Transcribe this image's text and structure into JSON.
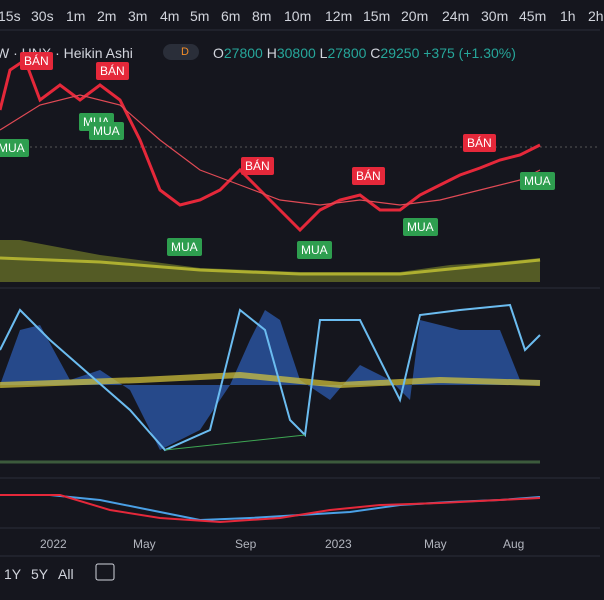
{
  "timeframes": [
    "15s",
    "30s",
    "1m",
    "2m",
    "3m",
    "4m",
    "5m",
    "6m",
    "8m",
    "10m",
    "12m",
    "15m",
    "20m",
    "24m",
    "30m",
    "45m",
    "1h",
    "2h"
  ],
  "header": {
    "symbol": "W · HNX · Heikin Ashi",
    "badge": "D",
    "ohlc": [
      {
        "label": "O",
        "value": "27800"
      },
      {
        "label": "H",
        "value": "30800"
      },
      {
        "label": "L",
        "value": "27800"
      },
      {
        "label": "C",
        "value": "29250"
      }
    ],
    "change": "+375 (+1.30%)"
  },
  "signals": [
    "BÁN",
    "BÁN",
    "MUA",
    "MUA",
    "MUA",
    "BÁN",
    "BÁN",
    "BÁN",
    "MUA",
    "MUA",
    "MUA",
    "MUA"
  ],
  "x_axis": [
    "2022",
    "May",
    "Sep",
    "2023",
    "May",
    "Aug"
  ],
  "ranges": [
    "1Y",
    "5Y",
    "All"
  ]
}
